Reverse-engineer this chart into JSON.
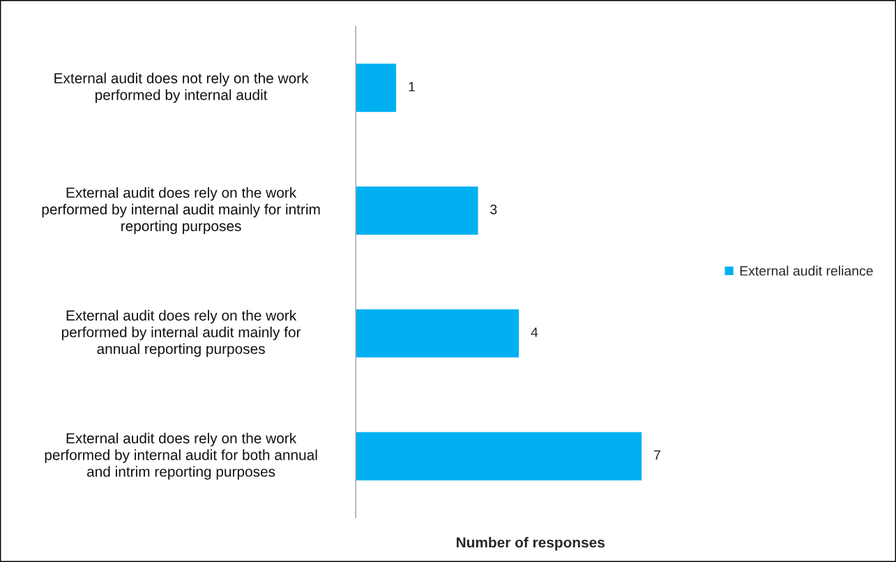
{
  "chart_data": {
    "type": "bar",
    "orientation": "horizontal",
    "categories": [
      "External audit does not rely on the work\nperformed by internal audit",
      "External audit does rely on the work\nperformed by internal audit mainly for intrim\nreporting purposes",
      "External audit does rely on the work\nperformed by internal audit mainly for\nannual reporting purposes",
      "External audit does rely on the work\nperformed by internal audit for both annual\nand intrim reporting purposes"
    ],
    "series": [
      {
        "name": "External audit reliance",
        "color": "#00b0f0",
        "values": [
          1,
          3,
          4,
          7
        ]
      }
    ],
    "xlabel": "Number of responses",
    "data_labels": true,
    "legend": "right",
    "grid": false,
    "tick_labels": "y"
  }
}
